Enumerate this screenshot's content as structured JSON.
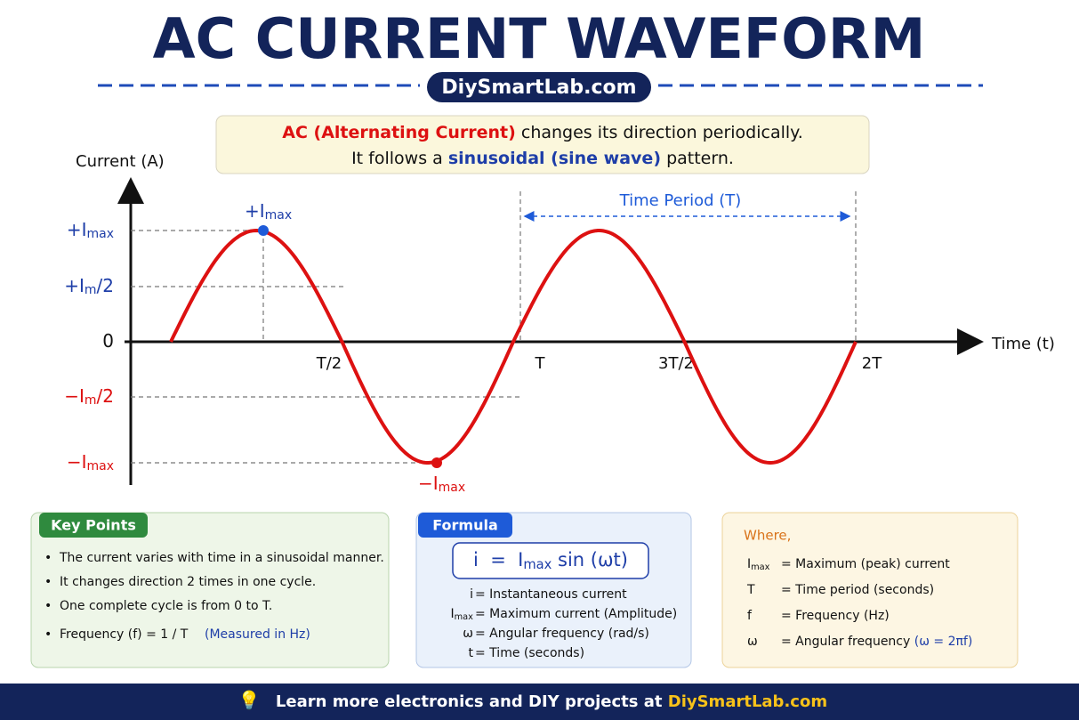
{
  "header": {
    "title": "AC CURRENT WAVEFORM",
    "site": "DiySmartLab.com"
  },
  "intro": {
    "line1": {
      "highlight": "AC (Alternating Current)",
      "rest": "changes its direction periodically."
    },
    "line2": {
      "lead": "It follows a",
      "highlight": "sinusoidal (sine wave)",
      "rest": "pattern."
    }
  },
  "graph": {
    "y_axis_label": "Current (A)",
    "x_axis_label": "Time (t)",
    "y_labels": [
      {
        "pre": "+I",
        "sub": "max"
      },
      {
        "pre": "+I",
        "sub": "m",
        "post": "/2"
      },
      {
        "pre": "0"
      },
      {
        "pre": "−I",
        "sub": "m",
        "post": "/2"
      },
      {
        "pre": "−I",
        "sub": "max"
      }
    ],
    "x_labels": [
      "T/2",
      "T",
      "3T/2",
      "2T"
    ],
    "peak_top": {
      "pre": "+I",
      "sub": "max"
    },
    "peak_bottom": {
      "pre": "−I",
      "sub": "max"
    },
    "period_label": "Time Period (T)"
  },
  "key_points": {
    "title": "Key Points",
    "items": [
      "The current varies with time in a sinusoidal manner.",
      "It changes direction 2 times in one cycle.",
      "One complete cycle is from 0 to T.",
      "Frequency (f) = 1 / T"
    ],
    "note": "(Measured in Hz)"
  },
  "formula": {
    "title": "Formula",
    "equation": {
      "lhs": "i  =  I",
      "sub": "max",
      "rhs": " sin (ωt)"
    },
    "definitions": [
      {
        "symbol": "i",
        "desc": "= Instantaneous current"
      },
      {
        "symbol": "I",
        "sub": "max",
        "desc": "= Maximum current (Amplitude)"
      },
      {
        "symbol": "ω",
        "desc": "= Angular frequency (rad/s)"
      },
      {
        "symbol": "t",
        "desc": "= Time (seconds)"
      }
    ]
  },
  "where": {
    "title": "Where,",
    "rows": [
      {
        "symbol": "I",
        "sub": "max",
        "desc": "= Maximum (peak) current"
      },
      {
        "symbol": "T",
        "desc": "= Time period (seconds)"
      },
      {
        "symbol": "f",
        "desc": "= Frequency (Hz)"
      },
      {
        "symbol": "ω",
        "desc": "= Angular frequency",
        "note": "(ω = 2πf)"
      }
    ]
  },
  "footer": {
    "text": "Learn more electronics and DIY projects at",
    "link": "DiySmartLab.com"
  }
}
